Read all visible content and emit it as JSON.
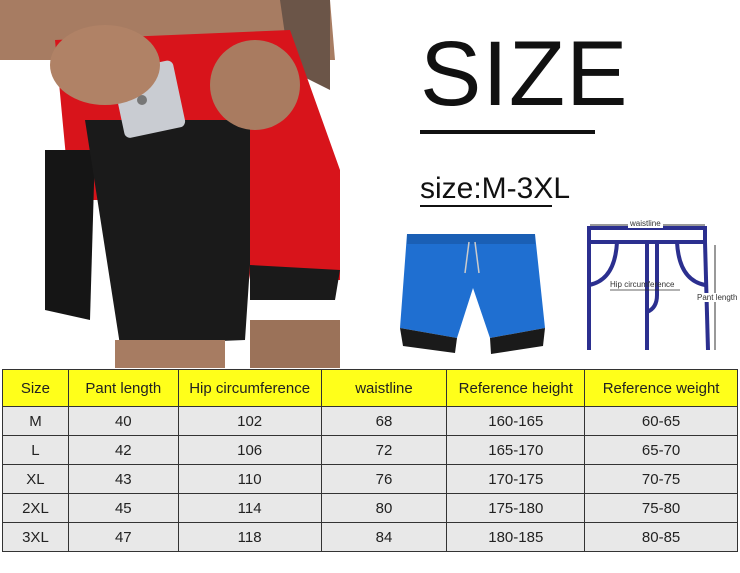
{
  "title": "SIZE",
  "subtitle": "size:M-3XL",
  "diagram": {
    "waist_label": "waistline",
    "hip_label": "Hip circumference",
    "length_label": "Pant length",
    "line_color": "#2b2f8f"
  },
  "colors": {
    "header_bg": "#ffff1a",
    "row_bg": "#e8e8e8",
    "shorts_red": "#d8141b",
    "shorts_blue": "#1f6fd1"
  },
  "table": {
    "headers": [
      "Size",
      "Pant length",
      "Hip circumference",
      "waistline",
      "Reference height",
      "Reference weight"
    ],
    "rows": [
      [
        "M",
        "40",
        "102",
        "68",
        "160-165",
        "60-65"
      ],
      [
        "L",
        "42",
        "106",
        "72",
        "165-170",
        "65-70"
      ],
      [
        "XL",
        "43",
        "110",
        "76",
        "170-175",
        "70-75"
      ],
      [
        "2XL",
        "45",
        "114",
        "80",
        "175-180",
        "75-80"
      ],
      [
        "3XL",
        "47",
        "118",
        "84",
        "180-185",
        "80-85"
      ]
    ]
  }
}
